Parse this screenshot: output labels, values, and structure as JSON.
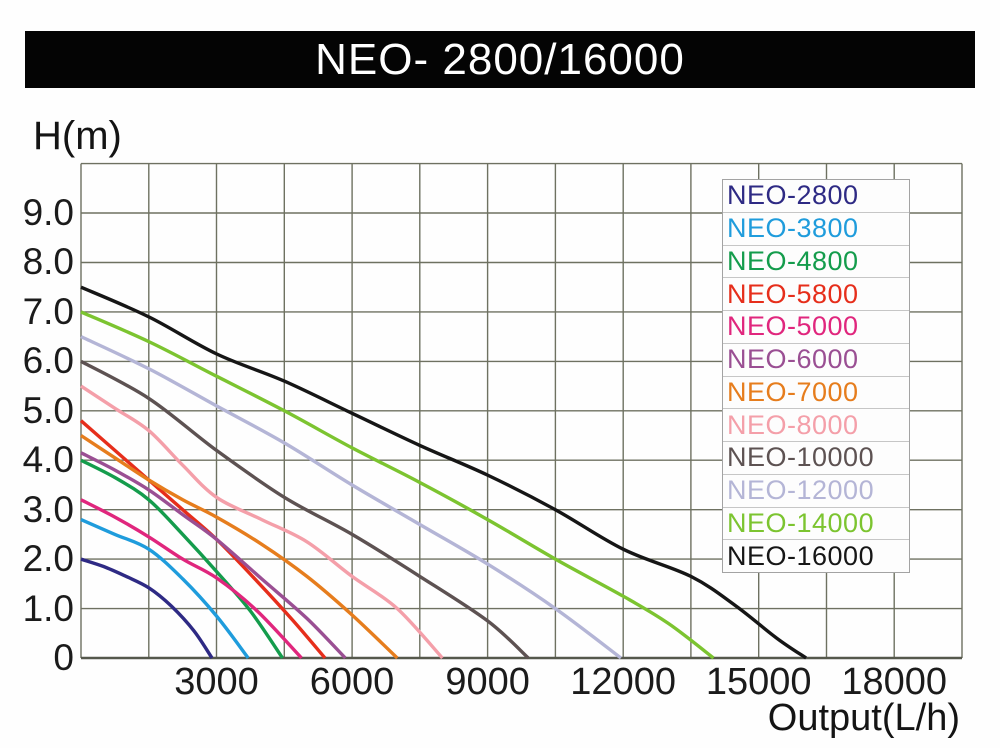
{
  "title": "NEO- 2800/16000",
  "axes": {
    "y_label": "H(m)",
    "x_label": "Output(L/h)"
  },
  "colors": {
    "title_bg": "#040404",
    "title_text": "#ffffff",
    "grid": "#6e7161",
    "axis": "#55584c",
    "tick_text": "#1b1b1b",
    "legend_border": "#a3a3a3",
    "legend_bg": "#fdfdfd"
  },
  "chart_data": {
    "type": "line",
    "title": "NEO- 2800/16000",
    "xlabel": "Output(L/h)",
    "ylabel": "H(m)",
    "xlim": [
      0,
      19500
    ],
    "ylim": [
      0,
      10
    ],
    "grid": {
      "x_step": 1500,
      "y_step": 1,
      "on": true
    },
    "legend_position": "top-right",
    "x_ticks": [
      {
        "value": 3000,
        "label": "3000"
      },
      {
        "value": 6000,
        "label": "6000"
      },
      {
        "value": 9000,
        "label": "9000"
      },
      {
        "value": 12000,
        "label": "12000"
      },
      {
        "value": 15000,
        "label": "15000"
      },
      {
        "value": 18000,
        "label": "18000"
      }
    ],
    "y_ticks": [
      {
        "value": 9,
        "label": "9.0"
      },
      {
        "value": 8,
        "label": "8.0"
      },
      {
        "value": 7,
        "label": "7.0"
      },
      {
        "value": 6,
        "label": "6.0"
      },
      {
        "value": 5,
        "label": "5.0"
      },
      {
        "value": 4,
        "label": "4.0"
      },
      {
        "value": 3,
        "label": "3.0"
      },
      {
        "value": 2,
        "label": "2.0"
      },
      {
        "value": 1,
        "label": "1.0"
      },
      {
        "value": 0,
        "label": "0"
      }
    ],
    "series": [
      {
        "name": "NEO-2800",
        "color": "#2e2a84",
        "max_head_m": 2.0,
        "max_flow_lh": 2900,
        "points": [
          [
            0,
            2.0
          ],
          [
            500,
            1.85
          ],
          [
            1000,
            1.65
          ],
          [
            1500,
            1.42
          ],
          [
            2000,
            1.05
          ],
          [
            2500,
            0.55
          ],
          [
            2900,
            0
          ]
        ]
      },
      {
        "name": "NEO-3800",
        "color": "#1f9cdc",
        "max_head_m": 2.8,
        "max_flow_lh": 3700,
        "points": [
          [
            0,
            2.8
          ],
          [
            750,
            2.5
          ],
          [
            1500,
            2.2
          ],
          [
            2250,
            1.6
          ],
          [
            3000,
            0.85
          ],
          [
            3700,
            0
          ]
        ]
      },
      {
        "name": "NEO-4800",
        "color": "#149c4c",
        "max_head_m": 4.0,
        "max_flow_lh": 4460,
        "points": [
          [
            0,
            4.0
          ],
          [
            750,
            3.65
          ],
          [
            1500,
            3.2
          ],
          [
            2250,
            2.5
          ],
          [
            3000,
            1.75
          ],
          [
            3750,
            0.95
          ],
          [
            4460,
            0
          ]
        ]
      },
      {
        "name": "NEO-5800",
        "color": "#e62e1b",
        "max_head_m": 4.8,
        "max_flow_lh": 5400,
        "points": [
          [
            0,
            4.8
          ],
          [
            750,
            4.2
          ],
          [
            1500,
            3.6
          ],
          [
            2250,
            3.0
          ],
          [
            3000,
            2.4
          ],
          [
            3900,
            1.55
          ],
          [
            4700,
            0.75
          ],
          [
            5400,
            0
          ]
        ]
      },
      {
        "name": "NEO-5000",
        "color": "#e0267d",
        "max_head_m": 3.2,
        "max_flow_lh": 4880,
        "points": [
          [
            0,
            3.2
          ],
          [
            750,
            2.85
          ],
          [
            1500,
            2.45
          ],
          [
            2250,
            2.0
          ],
          [
            3000,
            1.62
          ],
          [
            3900,
            0.95
          ],
          [
            4880,
            0
          ]
        ]
      },
      {
        "name": "NEO-6000",
        "color": "#9a4f93",
        "max_head_m": 4.15,
        "max_flow_lh": 5850,
        "points": [
          [
            0,
            4.15
          ],
          [
            750,
            3.8
          ],
          [
            1500,
            3.4
          ],
          [
            2250,
            2.9
          ],
          [
            3000,
            2.4
          ],
          [
            4000,
            1.6
          ],
          [
            5000,
            0.8
          ],
          [
            5850,
            0
          ]
        ]
      },
      {
        "name": "NEO-7000",
        "color": "#e67d1d",
        "max_head_m": 4.5,
        "max_flow_lh": 7000,
        "points": [
          [
            0,
            4.5
          ],
          [
            750,
            4.05
          ],
          [
            1500,
            3.6
          ],
          [
            2250,
            3.2
          ],
          [
            3000,
            2.85
          ],
          [
            4000,
            2.3
          ],
          [
            5000,
            1.65
          ],
          [
            6000,
            0.87
          ],
          [
            7000,
            0
          ]
        ]
      },
      {
        "name": "NEO-8000",
        "color": "#f49fa9",
        "max_head_m": 5.5,
        "max_flow_lh": 8000,
        "points": [
          [
            0,
            5.5
          ],
          [
            750,
            5.05
          ],
          [
            1500,
            4.6
          ],
          [
            2250,
            3.9
          ],
          [
            3000,
            3.25
          ],
          [
            4000,
            2.8
          ],
          [
            5000,
            2.35
          ],
          [
            6000,
            1.65
          ],
          [
            7000,
            1.0
          ],
          [
            8000,
            0
          ]
        ]
      },
      {
        "name": "NEO-10000",
        "color": "#5d5252",
        "max_head_m": 6.0,
        "max_flow_lh": 9900,
        "points": [
          [
            0,
            6.0
          ],
          [
            1500,
            5.25
          ],
          [
            3000,
            4.2
          ],
          [
            4500,
            3.25
          ],
          [
            6000,
            2.5
          ],
          [
            7500,
            1.65
          ],
          [
            9000,
            0.75
          ],
          [
            9900,
            0
          ]
        ]
      },
      {
        "name": "NEO-12000",
        "color": "#b4b5d6",
        "max_head_m": 6.5,
        "max_flow_lh": 11950,
        "points": [
          [
            0,
            6.5
          ],
          [
            1500,
            5.85
          ],
          [
            3000,
            5.1
          ],
          [
            4500,
            4.35
          ],
          [
            6000,
            3.5
          ],
          [
            7500,
            2.7
          ],
          [
            9000,
            1.9
          ],
          [
            10500,
            1.0
          ],
          [
            11950,
            0
          ]
        ]
      },
      {
        "name": "NEO-14000",
        "color": "#7cc430",
        "max_head_m": 7.0,
        "max_flow_lh": 14000,
        "points": [
          [
            0,
            7.0
          ],
          [
            1500,
            6.4
          ],
          [
            3000,
            5.7
          ],
          [
            4500,
            5.0
          ],
          [
            6000,
            4.25
          ],
          [
            7500,
            3.55
          ],
          [
            9000,
            2.8
          ],
          [
            10500,
            2.0
          ],
          [
            12000,
            1.25
          ],
          [
            13000,
            0.7
          ],
          [
            14000,
            0
          ]
        ]
      },
      {
        "name": "NEO-16000",
        "color": "#161616",
        "max_head_m": 7.5,
        "max_flow_lh": 16050,
        "points": [
          [
            0,
            7.5
          ],
          [
            1500,
            6.9
          ],
          [
            3000,
            6.15
          ],
          [
            4500,
            5.6
          ],
          [
            6000,
            4.95
          ],
          [
            7500,
            4.3
          ],
          [
            9000,
            3.7
          ],
          [
            10500,
            3.0
          ],
          [
            12000,
            2.2
          ],
          [
            13500,
            1.65
          ],
          [
            14500,
            1.05
          ],
          [
            15400,
            0.4
          ],
          [
            16050,
            0
          ]
        ]
      }
    ]
  }
}
